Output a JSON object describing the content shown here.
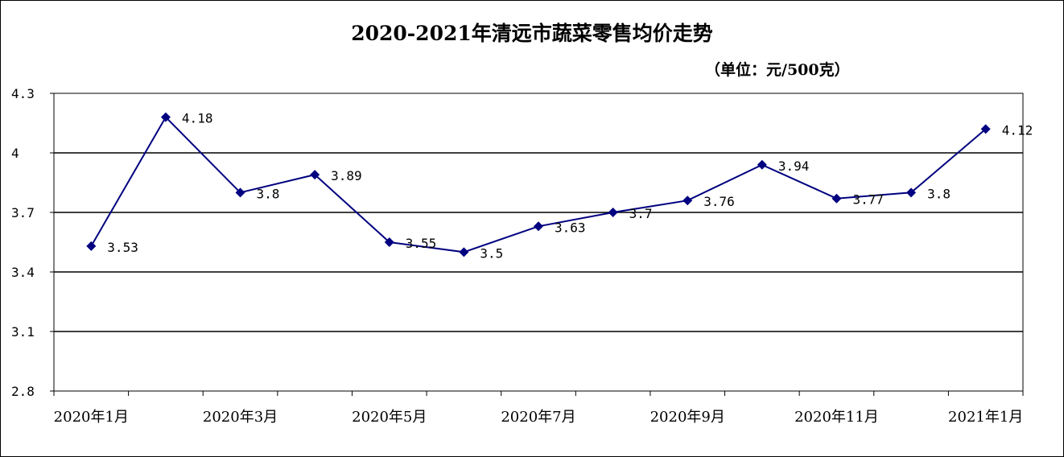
{
  "chart_data": {
    "type": "line",
    "title": "2020-2021年清远市蔬菜零售均价走势",
    "unit_label": "（单位：元/500克）",
    "ylim": [
      2.8,
      4.3
    ],
    "yticks": [
      "4.3",
      "4",
      "3.7",
      "3.4",
      "3.1",
      "2.8"
    ],
    "ytick_values": [
      4.3,
      4.0,
      3.7,
      3.4,
      3.1,
      2.8
    ],
    "xtick_labels": [
      "2020年1月",
      "2020年3月",
      "2020年5月",
      "2020年7月",
      "2020年9月",
      "2020年11月",
      "2021年1月"
    ],
    "grid": true,
    "series": [
      {
        "color": "#000080",
        "values": [
          3.53,
          4.18,
          3.8,
          3.89,
          3.55,
          3.5,
          3.63,
          3.7,
          3.76,
          3.94,
          3.77,
          3.8,
          4.12
        ],
        "labels": [
          "3.53",
          "4.18",
          "3.8",
          "3.89",
          "3.55",
          "3.5",
          "3.63",
          "3.7",
          "3.76",
          "3.94",
          "3.77",
          "3.8",
          "4.12"
        ]
      }
    ]
  }
}
